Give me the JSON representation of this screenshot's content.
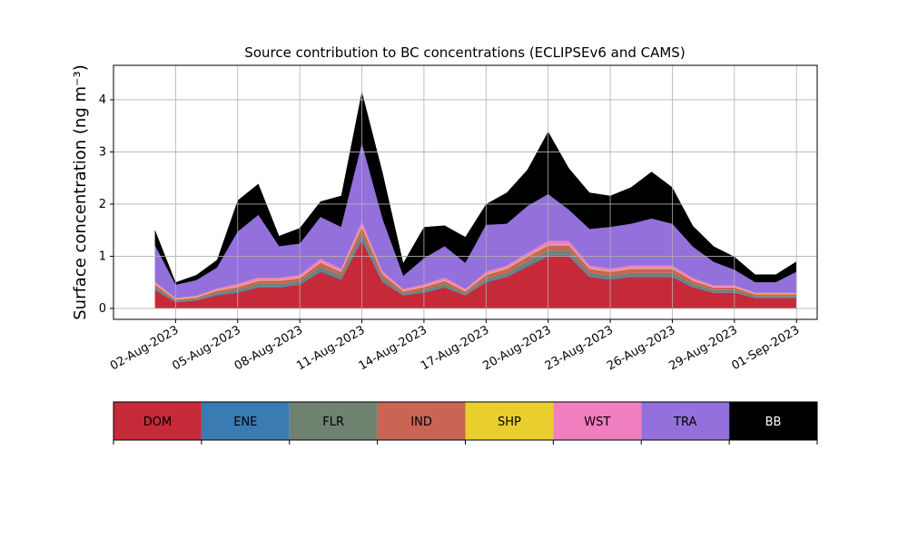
{
  "chart_data": {
    "type": "stacked_area",
    "title": "Source contribution to BC concentrations (ECLIPSEv6 and CAMS)",
    "y_label": "Surface concentration (ng m⁻³)",
    "x": [
      "2023-08-01",
      "2023-08-02",
      "2023-08-03",
      "2023-08-04",
      "2023-08-05",
      "2023-08-06",
      "2023-08-07",
      "2023-08-08",
      "2023-08-09",
      "2023-08-10",
      "2023-08-11",
      "2023-08-12",
      "2023-08-13",
      "2023-08-14",
      "2023-08-15",
      "2023-08-16",
      "2023-08-17",
      "2023-08-18",
      "2023-08-19",
      "2023-08-20",
      "2023-08-21",
      "2023-08-22",
      "2023-08-23",
      "2023-08-24",
      "2023-08-25",
      "2023-08-26",
      "2023-08-27",
      "2023-08-28",
      "2023-08-29",
      "2023-08-30",
      "2023-08-31",
      "2023-09-01"
    ],
    "xlim": [
      "2023-07-30",
      "2023-09-02"
    ],
    "xticks": [
      {
        "value": "2023-08-02",
        "label": "02-Aug-2023"
      },
      {
        "value": "2023-08-05",
        "label": "05-Aug-2023"
      },
      {
        "value": "2023-08-08",
        "label": "08-Aug-2023"
      },
      {
        "value": "2023-08-11",
        "label": "11-Aug-2023"
      },
      {
        "value": "2023-08-14",
        "label": "14-Aug-2023"
      },
      {
        "value": "2023-08-17",
        "label": "17-Aug-2023"
      },
      {
        "value": "2023-08-20",
        "label": "20-Aug-2023"
      },
      {
        "value": "2023-08-23",
        "label": "23-Aug-2023"
      },
      {
        "value": "2023-08-26",
        "label": "26-Aug-2023"
      },
      {
        "value": "2023-08-29",
        "label": "29-Aug-2023"
      },
      {
        "value": "2023-09-01",
        "label": "01-Sep-2023"
      }
    ],
    "ylim": [
      -0.21,
      4.66
    ],
    "yticks": [
      0,
      1,
      2,
      3,
      4
    ],
    "grid": true,
    "series": [
      {
        "name": "DOM",
        "color": "#c62a38",
        "values": [
          0.35,
          0.12,
          0.15,
          0.25,
          0.3,
          0.4,
          0.4,
          0.45,
          0.7,
          0.55,
          1.3,
          0.5,
          0.25,
          0.3,
          0.4,
          0.25,
          0.5,
          0.6,
          0.8,
          1.0,
          1.0,
          0.6,
          0.55,
          0.6,
          0.6,
          0.6,
          0.4,
          0.3,
          0.3,
          0.2,
          0.2,
          0.2
        ]
      },
      {
        "name": "ENE",
        "color": "#3a7bb4",
        "values": [
          0.02,
          0.01,
          0.01,
          0.02,
          0.02,
          0.02,
          0.02,
          0.02,
          0.03,
          0.02,
          0.04,
          0.02,
          0.01,
          0.02,
          0.02,
          0.01,
          0.02,
          0.02,
          0.03,
          0.03,
          0.03,
          0.02,
          0.02,
          0.02,
          0.02,
          0.02,
          0.02,
          0.01,
          0.01,
          0.01,
          0.01,
          0.01
        ]
      },
      {
        "name": "FLR",
        "color": "#6f8270",
        "values": [
          0.04,
          0.02,
          0.02,
          0.03,
          0.04,
          0.05,
          0.05,
          0.05,
          0.07,
          0.06,
          0.1,
          0.06,
          0.03,
          0.04,
          0.05,
          0.03,
          0.05,
          0.06,
          0.07,
          0.08,
          0.08,
          0.06,
          0.06,
          0.06,
          0.06,
          0.06,
          0.05,
          0.04,
          0.04,
          0.03,
          0.03,
          0.03
        ]
      },
      {
        "name": "IND",
        "color": "#c86554",
        "values": [
          0.05,
          0.02,
          0.03,
          0.04,
          0.05,
          0.06,
          0.06,
          0.06,
          0.08,
          0.07,
          0.12,
          0.07,
          0.04,
          0.05,
          0.06,
          0.04,
          0.07,
          0.08,
          0.09,
          0.1,
          0.1,
          0.08,
          0.07,
          0.08,
          0.08,
          0.08,
          0.06,
          0.05,
          0.05,
          0.03,
          0.03,
          0.03
        ]
      },
      {
        "name": "SHP",
        "color": "#e8cf2e",
        "values": [
          0.01,
          0.01,
          0.01,
          0.01,
          0.01,
          0.01,
          0.01,
          0.01,
          0.01,
          0.01,
          0.02,
          0.01,
          0.01,
          0.01,
          0.01,
          0.01,
          0.01,
          0.01,
          0.01,
          0.01,
          0.01,
          0.01,
          0.01,
          0.01,
          0.01,
          0.01,
          0.01,
          0.01,
          0.01,
          0.01,
          0.01,
          0.01
        ]
      },
      {
        "name": "WST",
        "color": "#f07fbf",
        "values": [
          0.04,
          0.02,
          0.02,
          0.03,
          0.05,
          0.05,
          0.05,
          0.05,
          0.06,
          0.05,
          0.08,
          0.05,
          0.03,
          0.04,
          0.05,
          0.03,
          0.05,
          0.05,
          0.06,
          0.07,
          0.07,
          0.05,
          0.05,
          0.05,
          0.05,
          0.05,
          0.04,
          0.03,
          0.03,
          0.02,
          0.02,
          0.02
        ]
      },
      {
        "name": "TRA",
        "color": "#9370db",
        "values": [
          0.7,
          0.25,
          0.3,
          0.4,
          1.0,
          1.2,
          0.6,
          0.6,
          0.8,
          0.8,
          1.5,
          1.0,
          0.25,
          0.5,
          0.6,
          0.5,
          0.9,
          0.8,
          0.9,
          0.9,
          0.6,
          0.7,
          0.8,
          0.8,
          0.9,
          0.8,
          0.6,
          0.45,
          0.3,
          0.2,
          0.2,
          0.4
        ]
      },
      {
        "name": "BB",
        "color": "#000000",
        "values": [
          0.3,
          0.05,
          0.1,
          0.15,
          0.6,
          0.6,
          0.2,
          0.3,
          0.3,
          0.6,
          1.0,
          0.9,
          0.25,
          0.6,
          0.4,
          0.5,
          0.4,
          0.6,
          0.7,
          1.2,
          0.8,
          0.7,
          0.6,
          0.7,
          0.9,
          0.7,
          0.4,
          0.3,
          0.25,
          0.15,
          0.15,
          0.2
        ]
      }
    ]
  }
}
